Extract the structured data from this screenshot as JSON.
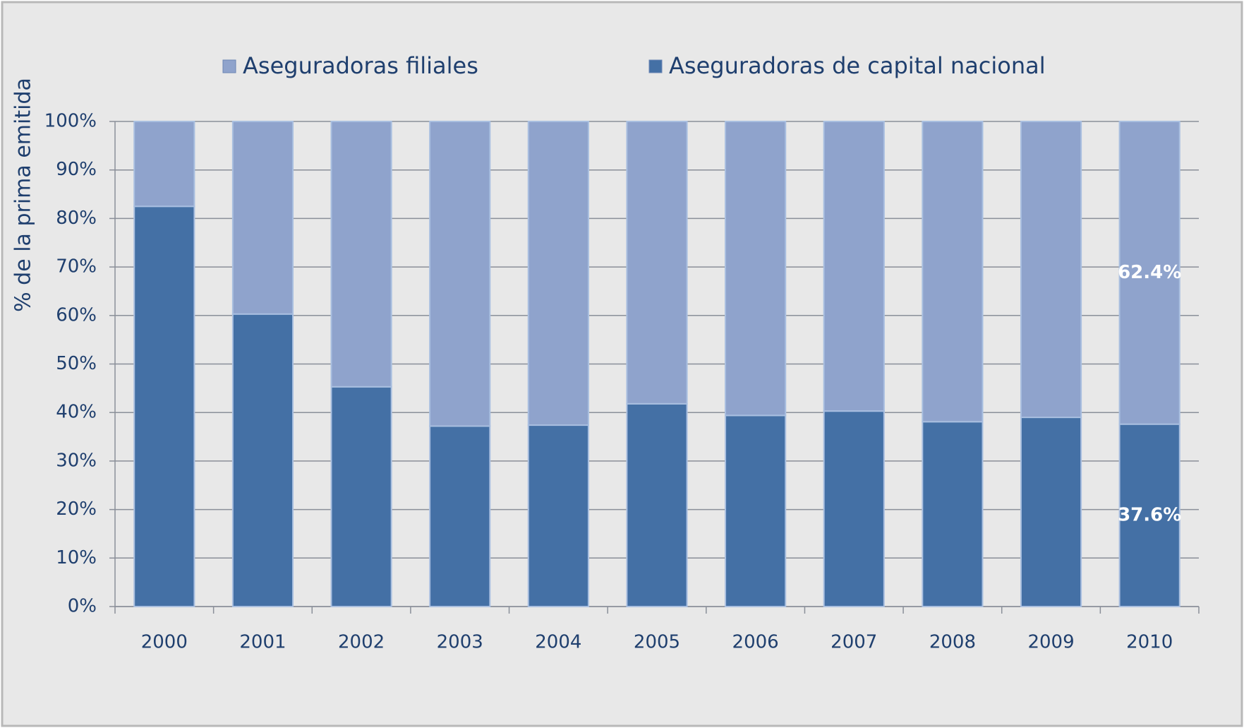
{
  "chart_data": {
    "type": "bar",
    "stacked": true,
    "ylabel": "% de la prima emitida",
    "categories": [
      "2000",
      "2001",
      "2002",
      "2003",
      "2004",
      "2005",
      "2006",
      "2007",
      "2008",
      "2009",
      "2010"
    ],
    "series": [
      {
        "name": "Aseguradoras filiales",
        "color": "#8fa3cc",
        "values": [
          17.5,
          39.7,
          54.7,
          62.8,
          62.6,
          58.2,
          60.6,
          59.7,
          61.9,
          61.0,
          62.4
        ],
        "value_labels": [
          null,
          null,
          null,
          null,
          null,
          null,
          null,
          null,
          null,
          null,
          "62.4%"
        ]
      },
      {
        "name": "Aseguradoras de capital nacional",
        "color": "#4470a5",
        "values": [
          82.5,
          60.3,
          45.3,
          37.2,
          37.4,
          41.8,
          39.4,
          40.3,
          38.1,
          39.0,
          37.6
        ],
        "value_labels": [
          null,
          null,
          null,
          null,
          null,
          null,
          null,
          null,
          null,
          null,
          "37.6%"
        ]
      }
    ],
    "ylim": [
      0,
      100
    ],
    "yticks": [
      {
        "value": 0,
        "label": "0%"
      },
      {
        "value": 10,
        "label": "10%"
      },
      {
        "value": 20,
        "label": "20%"
      },
      {
        "value": 30,
        "label": "30%"
      },
      {
        "value": 40,
        "label": "40%"
      },
      {
        "value": 50,
        "label": "50%"
      },
      {
        "value": 60,
        "label": "60%"
      },
      {
        "value": 70,
        "label": "70%"
      },
      {
        "value": 80,
        "label": "80%"
      },
      {
        "value": 90,
        "label": "90%"
      },
      {
        "value": 100,
        "label": "100%"
      }
    ],
    "grid": true,
    "legend": "top"
  }
}
